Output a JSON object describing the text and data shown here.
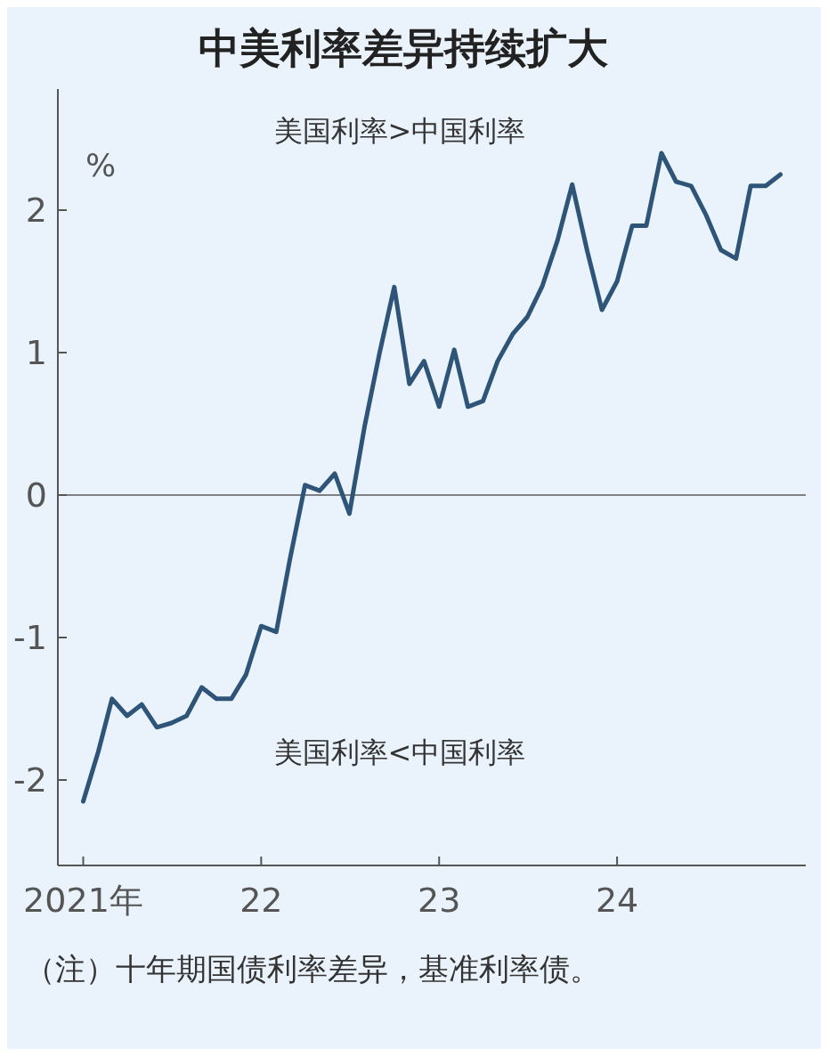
{
  "chart_data": {
    "type": "line",
    "title": "中美利率差异持续扩大",
    "ylabel": "%",
    "x": [
      "2021-01",
      "2021-02",
      "2021-03",
      "2021-04",
      "2021-05",
      "2021-06",
      "2021-07",
      "2021-08",
      "2021-09",
      "2021-10",
      "2021-11",
      "2021-12",
      "2022-01",
      "2022-02",
      "2022-03",
      "2022-04",
      "2022-05",
      "2022-06",
      "2022-07",
      "2022-08",
      "2022-09",
      "2022-10",
      "2022-11",
      "2022-12",
      "2023-01",
      "2023-02",
      "2023-03",
      "2023-04",
      "2023-05",
      "2023-06",
      "2023-07",
      "2023-08",
      "2023-09",
      "2023-10",
      "2023-11",
      "2023-12",
      "2024-01",
      "2024-02",
      "2024-03",
      "2024-04",
      "2024-05",
      "2024-06",
      "2024-07",
      "2024-08",
      "2024-09",
      "2024-10",
      "2024-11",
      "2024-12"
    ],
    "series": [
      {
        "color": "#2e5577",
        "values": [
          -2.15,
          -1.8,
          -1.43,
          -1.55,
          -1.47,
          -1.63,
          -1.6,
          -1.55,
          -1.35,
          -1.43,
          -1.43,
          -1.26,
          -0.92,
          -0.96,
          -0.45,
          0.07,
          0.03,
          0.15,
          -0.13,
          0.48,
          1.0,
          1.46,
          0.78,
          0.94,
          0.62,
          1.02,
          0.62,
          0.66,
          0.94,
          1.13,
          1.25,
          1.47,
          1.79,
          2.18,
          1.71,
          1.3,
          1.5,
          1.89,
          1.89,
          2.4,
          2.2,
          2.17,
          1.97,
          1.72,
          1.66,
          2.17,
          2.17,
          2.25
        ]
      }
    ],
    "xlim": [
      "2020-11-10",
      "2025-01-22"
    ],
    "xticks": [
      {
        "value": "2021-01",
        "label": "2021年"
      },
      {
        "value": "2022-01",
        "label": "22"
      },
      {
        "value": "2023-01",
        "label": "23"
      },
      {
        "value": "2024-01",
        "label": "24"
      }
    ],
    "ylim": [
      -2.6,
      2.85
    ],
    "yticks": [
      -2,
      -1,
      0,
      1,
      2
    ],
    "ref_lines": [
      {
        "axis": "y",
        "value": 0,
        "color": "#5a5a5a"
      }
    ],
    "annotations": [
      "美国利率>中国利率",
      "美国利率<中国利率",
      "（注）十年期国债利率差异，基准利率债。"
    ],
    "grid": false,
    "marker": "none",
    "line_style": "solid"
  }
}
